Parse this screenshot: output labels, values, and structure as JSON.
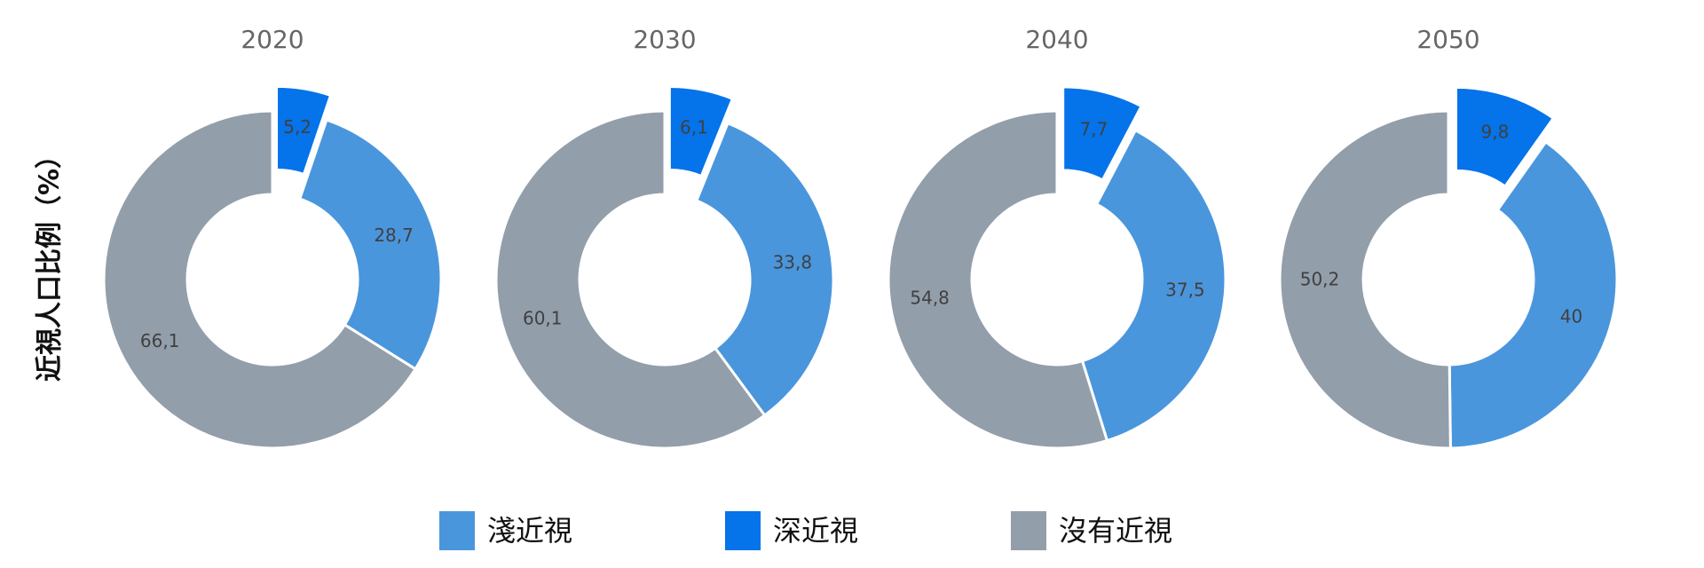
{
  "chart_data": {
    "type": "pie",
    "ylabel": "近視人口比例（%）",
    "categories": [
      "2020",
      "2030",
      "2040",
      "2050"
    ],
    "series": [
      {
        "name": "淺近視",
        "color": "#4a96dd",
        "values": [
          28.7,
          33.8,
          37.5,
          40
        ]
      },
      {
        "name": "深近視",
        "color": "#0573ea",
        "values": [
          5.2,
          6.1,
          7.7,
          9.8
        ]
      },
      {
        "name": "沒有近視",
        "color": "#939eab",
        "values": [
          66.1,
          60.1,
          54.8,
          50.2
        ]
      }
    ],
    "value_labels": [
      [
        "28,7",
        "5,2",
        "66,1"
      ],
      [
        "33,8",
        "6,1",
        "60,1"
      ],
      [
        "37,5",
        "7,7",
        "54,8"
      ],
      [
        "40",
        "9,8",
        "50,2"
      ]
    ],
    "legend_position": "bottom",
    "donut": true,
    "exploded_series": "深近視"
  }
}
